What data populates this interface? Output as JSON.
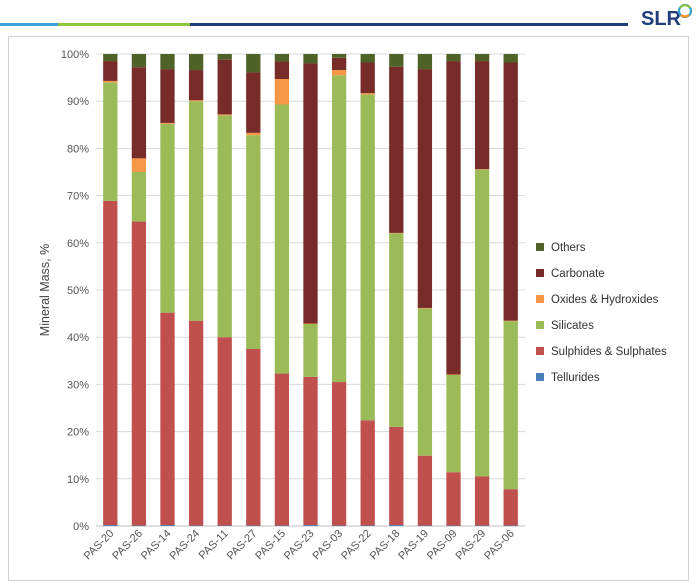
{
  "brand": {
    "logo_text": "SLR",
    "accent_line_colors": [
      "#3aa0d8",
      "#8cc63f",
      "#1f3d7a"
    ]
  },
  "chart_data": {
    "type": "bar",
    "stacked": true,
    "percent_stacked": true,
    "title": "",
    "xlabel": "",
    "ylabel": "Mineral Mass, %",
    "ylim": [
      0,
      100
    ],
    "yticks": [
      "0%",
      "10%",
      "20%",
      "30%",
      "40%",
      "50%",
      "60%",
      "70%",
      "80%",
      "90%",
      "100%"
    ],
    "legend_position": "right",
    "grid": true,
    "categories": [
      "PAS-20",
      "PAS-26",
      "PAS-14",
      "PAS-24",
      "PAS-11",
      "PAS-27",
      "PAS-15",
      "PAS-23",
      "PAS-03",
      "PAS-22",
      "PAS-18",
      "PAS-19",
      "PAS-09",
      "PAS-29",
      "PAS-06"
    ],
    "series": [
      {
        "name": "Tellurides",
        "color": "#4a7ebb",
        "values": [
          0.2,
          0.1,
          0.2,
          0.1,
          0.1,
          0.1,
          0.1,
          0.2,
          0.1,
          0.1,
          0.2,
          0.1,
          0.1,
          0.1,
          0.1
        ]
      },
      {
        "name": "Sulphides & Sulphates",
        "color": "#c0504d",
        "values": [
          68.7,
          64.4,
          45.0,
          43.4,
          39.9,
          37.4,
          32.2,
          31.4,
          30.4,
          22.3,
          20.8,
          14.8,
          11.3,
          10.4,
          7.7
        ]
      },
      {
        "name": "Silicates",
        "color": "#9bbb59",
        "values": [
          25.1,
          10.5,
          40.0,
          46.5,
          47.0,
          45.3,
          57.0,
          11.2,
          65.0,
          69.0,
          41.0,
          31.2,
          20.6,
          65.0,
          35.6
        ]
      },
      {
        "name": "Oxides & Hydroxides",
        "color": "#f79646",
        "values": [
          0.3,
          2.9,
          0.2,
          0.2,
          0.2,
          0.5,
          5.4,
          0.1,
          1.1,
          0.3,
          0.1,
          0.1,
          0.1,
          0.1,
          0.1
        ]
      },
      {
        "name": "Carbonate",
        "color": "#772c2a",
        "values": [
          4.2,
          19.3,
          11.4,
          6.4,
          11.6,
          12.8,
          3.7,
          55.1,
          2.6,
          6.5,
          35.2,
          50.6,
          66.4,
          22.9,
          54.7
        ]
      },
      {
        "name": "Others",
        "color": "#4f6228",
        "values": [
          1.5,
          2.8,
          3.2,
          3.4,
          1.2,
          3.9,
          1.6,
          2.0,
          0.8,
          1.8,
          2.7,
          3.2,
          1.5,
          1.5,
          1.8
        ]
      }
    ]
  }
}
